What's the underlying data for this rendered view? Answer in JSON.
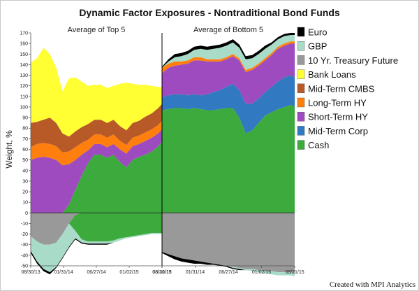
{
  "chart_data": {
    "type": "area",
    "title": "Dynamic Factor Exposures - Nontraditional Bond Funds",
    "ylabel": "Weight, %",
    "ylim": [
      -50,
      170
    ],
    "y_ticks": [
      -50,
      -40,
      -30,
      -20,
      -10,
      0,
      10,
      20,
      30,
      40,
      50,
      60,
      70,
      80,
      90,
      100,
      110,
      120,
      130,
      140,
      150,
      160,
      170
    ],
    "legend_order": [
      "Euro",
      "GBP",
      "10 Yr. Treasury Future",
      "Bank Loans",
      "Mid-Term CMBS",
      "Long-Term HY",
      "Short-Term HY",
      "Mid-Term Corp",
      "Cash"
    ],
    "colors": {
      "Euro": "#000000",
      "GBP": "#a8dcc8",
      "10 Yr. Treasury Future": "#999999",
      "Bank Loans": "#ffff33",
      "Mid-Term CMBS": "#b85a28",
      "Long-Term HY": "#ff7f0e",
      "Short-Term HY": "#9e4bbf",
      "Mid-Term Corp": "#3179c0",
      "Cash": "#3caa3c"
    },
    "panels": [
      {
        "name": "Average of Top 5",
        "x_ticks": [
          "08/30/13",
          "01/31/14",
          "06/27/14",
          "01/02/15",
          "08/21/15"
        ],
        "x": [
          "2013-08-30",
          "2013-10-04",
          "2013-11-08",
          "2013-12-13",
          "2014-01-17",
          "2014-02-21",
          "2014-03-28",
          "2014-05-02",
          "2014-06-06",
          "2014-07-11",
          "2014-08-15",
          "2014-09-19",
          "2014-10-24",
          "2014-11-28",
          "2015-01-02",
          "2015-02-06",
          "2015-03-13",
          "2015-04-17",
          "2015-05-22",
          "2015-06-26",
          "2015-07-31",
          "2015-08-21"
        ],
        "positive": [
          {
            "name": "Cash",
            "values": [
              0,
              0,
              0,
              0,
              0,
              0,
              8,
              22,
              35,
              47,
              55,
              55,
              52,
              55,
              48,
              43,
              50,
              53,
              55,
              58,
              63,
              67
            ]
          },
          {
            "name": "Short-Term HY",
            "values": [
              50,
              52,
              53,
              52,
              50,
              45,
              38,
              28,
              20,
              12,
              10,
              10,
              10,
              10,
              12,
              13,
              13,
              12,
              13,
              13,
              12,
              12
            ]
          },
          {
            "name": "Long-Term HY",
            "values": [
              12,
              13,
              13,
              13,
              13,
              12,
              12,
              12,
              11,
              10,
              9,
              9,
              9,
              9,
              8,
              8,
              8,
              8,
              8,
              8,
              8,
              8
            ]
          },
          {
            "name": "Mid-Term CMBS",
            "values": [
              23,
              21,
              22,
              25,
              22,
              18,
              14,
              15,
              15,
              15,
              14,
              14,
              14,
              14,
              14,
              14,
              14,
              14,
              15,
              15,
              16,
              16
            ]
          },
          {
            "name": "Bank Loans",
            "values": [
              57,
              60,
              68,
              60,
              52,
              40,
              55,
              51,
              43,
              36,
              33,
              33,
              33,
              32,
              40,
              45,
              37,
              34,
              30,
              26,
              20,
              16
            ]
          }
        ],
        "negative": [
          {
            "name": "10 Yr. Treasury Future",
            "values": [
              -22,
              -27,
              -30,
              -30,
              -28,
              -20,
              -10,
              -2,
              0,
              0,
              0,
              0,
              0,
              0,
              0,
              0,
              0,
              0,
              0,
              0,
              0,
              0
            ]
          },
          {
            "name": "Mid-Term Corp",
            "values": [
              0,
              0,
              0,
              0,
              0,
              0,
              0,
              0,
              0,
              0,
              0,
              0,
              0,
              0,
              0,
              0,
              0,
              0,
              0,
              0,
              0,
              0
            ]
          },
          {
            "name": "Cash",
            "values": [
              0,
              0,
              0,
              0,
              0,
              0,
              0,
              -15,
              -25,
              -27,
              -27,
              -27,
              -27,
              -26,
              -24,
              -23,
              -22,
              -21,
              -20,
              -19,
              -19,
              -19
            ]
          },
          {
            "name": "GBP",
            "values": [
              -14,
              -19,
              -23,
              -26,
              -23,
              -22,
              -22,
              -7,
              -3,
              -2,
              -2,
              -2,
              -2,
              -2,
              -2,
              -1,
              -1,
              -1,
              -1,
              -1,
              -1,
              -1
            ]
          },
          {
            "name": "Euro",
            "values": [
              -2,
              -2,
              -2,
              -2,
              -1,
              -1,
              -1,
              -1,
              -1,
              -1,
              -1,
              -1,
              -1,
              0,
              0,
              0,
              0,
              0,
              0,
              0,
              0,
              0
            ]
          }
        ]
      },
      {
        "name": "Average of Bottom 5",
        "x_ticks": [
          "08/30/13",
          "01/31/14",
          "06/27/14",
          "01/02/15",
          "08/21/15"
        ],
        "x": [
          "2013-08-30",
          "2013-10-04",
          "2013-11-08",
          "2013-12-13",
          "2014-01-17",
          "2014-02-21",
          "2014-03-28",
          "2014-05-02",
          "2014-06-06",
          "2014-07-11",
          "2014-08-15",
          "2014-09-19",
          "2014-10-24",
          "2014-11-28",
          "2015-01-02",
          "2015-02-06",
          "2015-03-13",
          "2015-04-17",
          "2015-05-22",
          "2015-06-26",
          "2015-07-31",
          "2015-08-21"
        ],
        "positive": [
          {
            "name": "Cash",
            "values": [
              97,
              98,
              99,
              99,
              98,
              99,
              98,
              97,
              97,
              98,
              99,
              99,
              90,
              75,
              78,
              85,
              92,
              95,
              98,
              100,
              102,
              100
            ]
          },
          {
            "name": "Mid-Term Corp",
            "values": [
              12,
              13,
              13,
              13,
              13,
              13,
              13,
              15,
              17,
              18,
              20,
              23,
              26,
              28,
              25,
              23,
              22,
              24,
              26,
              28,
              28,
              28
            ]
          },
          {
            "name": "Short-Term HY",
            "values": [
              23,
              26,
              27,
              28,
              30,
              32,
              33,
              31,
              29,
              27,
              26,
              26,
              28,
              30,
              32,
              31,
              30,
              30,
              31,
              30,
              30,
              32
            ]
          },
          {
            "name": "Long-Term HY",
            "values": [
              5,
              4,
              4,
              3,
              3,
              3,
              3,
              2,
              2,
              2,
              2,
              2,
              2,
              2,
              2,
              2,
              2,
              2,
              2,
              2,
              2,
              2
            ]
          },
          {
            "name": "GBP",
            "values": [
              0,
              2,
              4,
              5,
              6,
              7,
              8,
              9,
              10,
              11,
              11,
              11,
              10,
              10,
              9,
              9,
              9,
              8,
              7,
              7,
              6,
              6
            ]
          },
          {
            "name": "Euro",
            "values": [
              1,
              2,
              3,
              3,
              3,
              3,
              3,
              3,
              3,
              3,
              3,
              3,
              3,
              3,
              3,
              3,
              3,
              2,
              2,
              2,
              2,
              2
            ]
          }
        ],
        "negative": [
          {
            "name": "10 Yr. Treasury Future",
            "values": [
              -37,
              -39,
              -41,
              -43,
              -44,
              -45,
              -46,
              -47,
              -48,
              -49,
              -50,
              -51,
              -52,
              -53,
              -53,
              -54,
              -55,
              -55,
              -56,
              -56,
              -56,
              -57
            ]
          },
          {
            "name": "GBP",
            "values": [
              0,
              0,
              0,
              0,
              0,
              0,
              0,
              0,
              0,
              0,
              0,
              -1,
              -1,
              -1,
              -2,
              -2,
              -2,
              -3,
              -3,
              -3,
              -3,
              -3
            ]
          },
          {
            "name": "Euro",
            "values": [
              -1,
              -2,
              -3,
              -3,
              -3,
              -3,
              -2,
              -2,
              -1,
              -1,
              -1,
              -1,
              -1,
              0,
              0,
              0,
              0,
              0,
              0,
              0,
              0,
              0
            ]
          }
        ]
      }
    ],
    "footer": "Created with MPI Analytics"
  }
}
